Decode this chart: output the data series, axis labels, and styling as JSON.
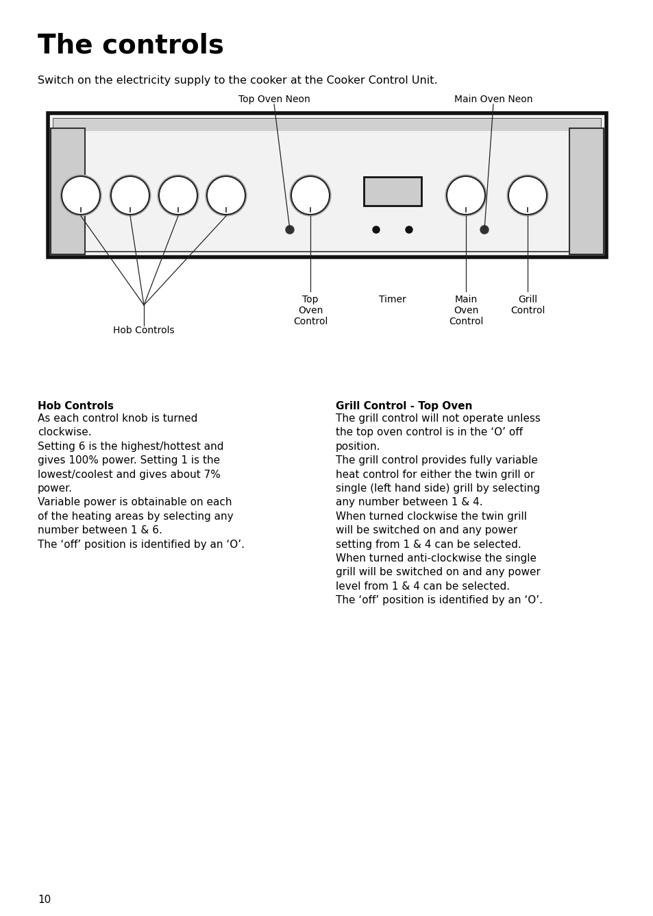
{
  "title": "The controls",
  "subtitle": "Switch on the electricity supply to the cooker at the Cooker Control Unit.",
  "bg_color": "#ffffff",
  "title_fontsize": 28,
  "subtitle_fontsize": 11.5,
  "body_fontsize": 11,
  "page_number": "10",
  "diagram": {
    "top_label_left": "Top Oven Neon",
    "top_label_right": "Main Oven Neon",
    "bottom_labels": [
      "Hob Controls",
      "Top\nOven\nControl",
      "Timer",
      "Main\nOven\nControl",
      "Grill\nControl"
    ]
  },
  "left_section": {
    "heading": "Hob Controls",
    "body": "As each control knob is turned\nclockwise.\nSetting 6 is the highest/hottest and\ngives 100% power. Setting 1 is the\nlowest/coolest and gives about 7%\npower.\nVariable power is obtainable on each\nof the heating areas by selecting any\nnumber between 1 & 6.\nThe ‘off’ position is identified by an ‘O’."
  },
  "right_section": {
    "heading": "Grill Control - Top Oven",
    "body": "The grill control will not operate unless\nthe top oven control is in the ‘O’ off\nposition.\nThe grill control provides fully variable\nheat control for either the twin grill or\nsingle (left hand side) grill by selecting\nany number between 1 & 4.\nWhen turned clockwise the twin grill\nwill be switched on and any power\nsetting from 1 & 4 can be selected.\nWhen turned anti-clockwise the single\ngrill will be switched on and any power\nlevel from 1 & 4 can be selected.\nThe ‘off’ position is identified by an ‘O’."
  }
}
